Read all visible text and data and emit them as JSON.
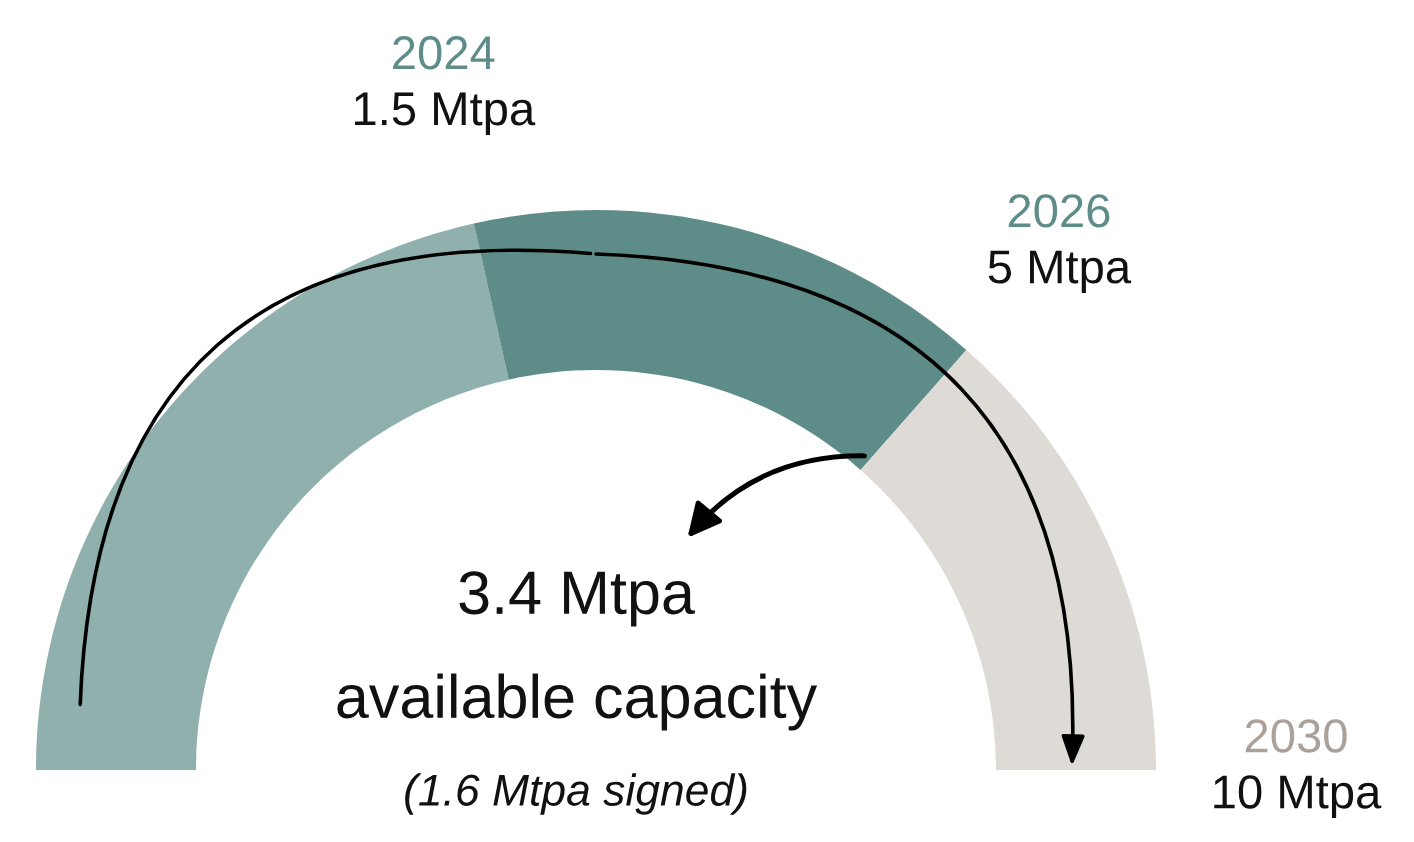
{
  "chart_data": {
    "type": "donut",
    "categories": [
      "2024",
      "2026",
      "2030"
    ],
    "values": [
      43,
      30,
      27
    ],
    "colors": [
      "#8fb0ad",
      "#5e8c88",
      "#dedad6"
    ],
    "annotations": [
      "1.5 Mtpa",
      "5 Mtpa",
      "10 Mtpa",
      "3.4 Mtpa",
      "available capacity",
      "(1.6 Mtpa signed)"
    ]
  }
}
